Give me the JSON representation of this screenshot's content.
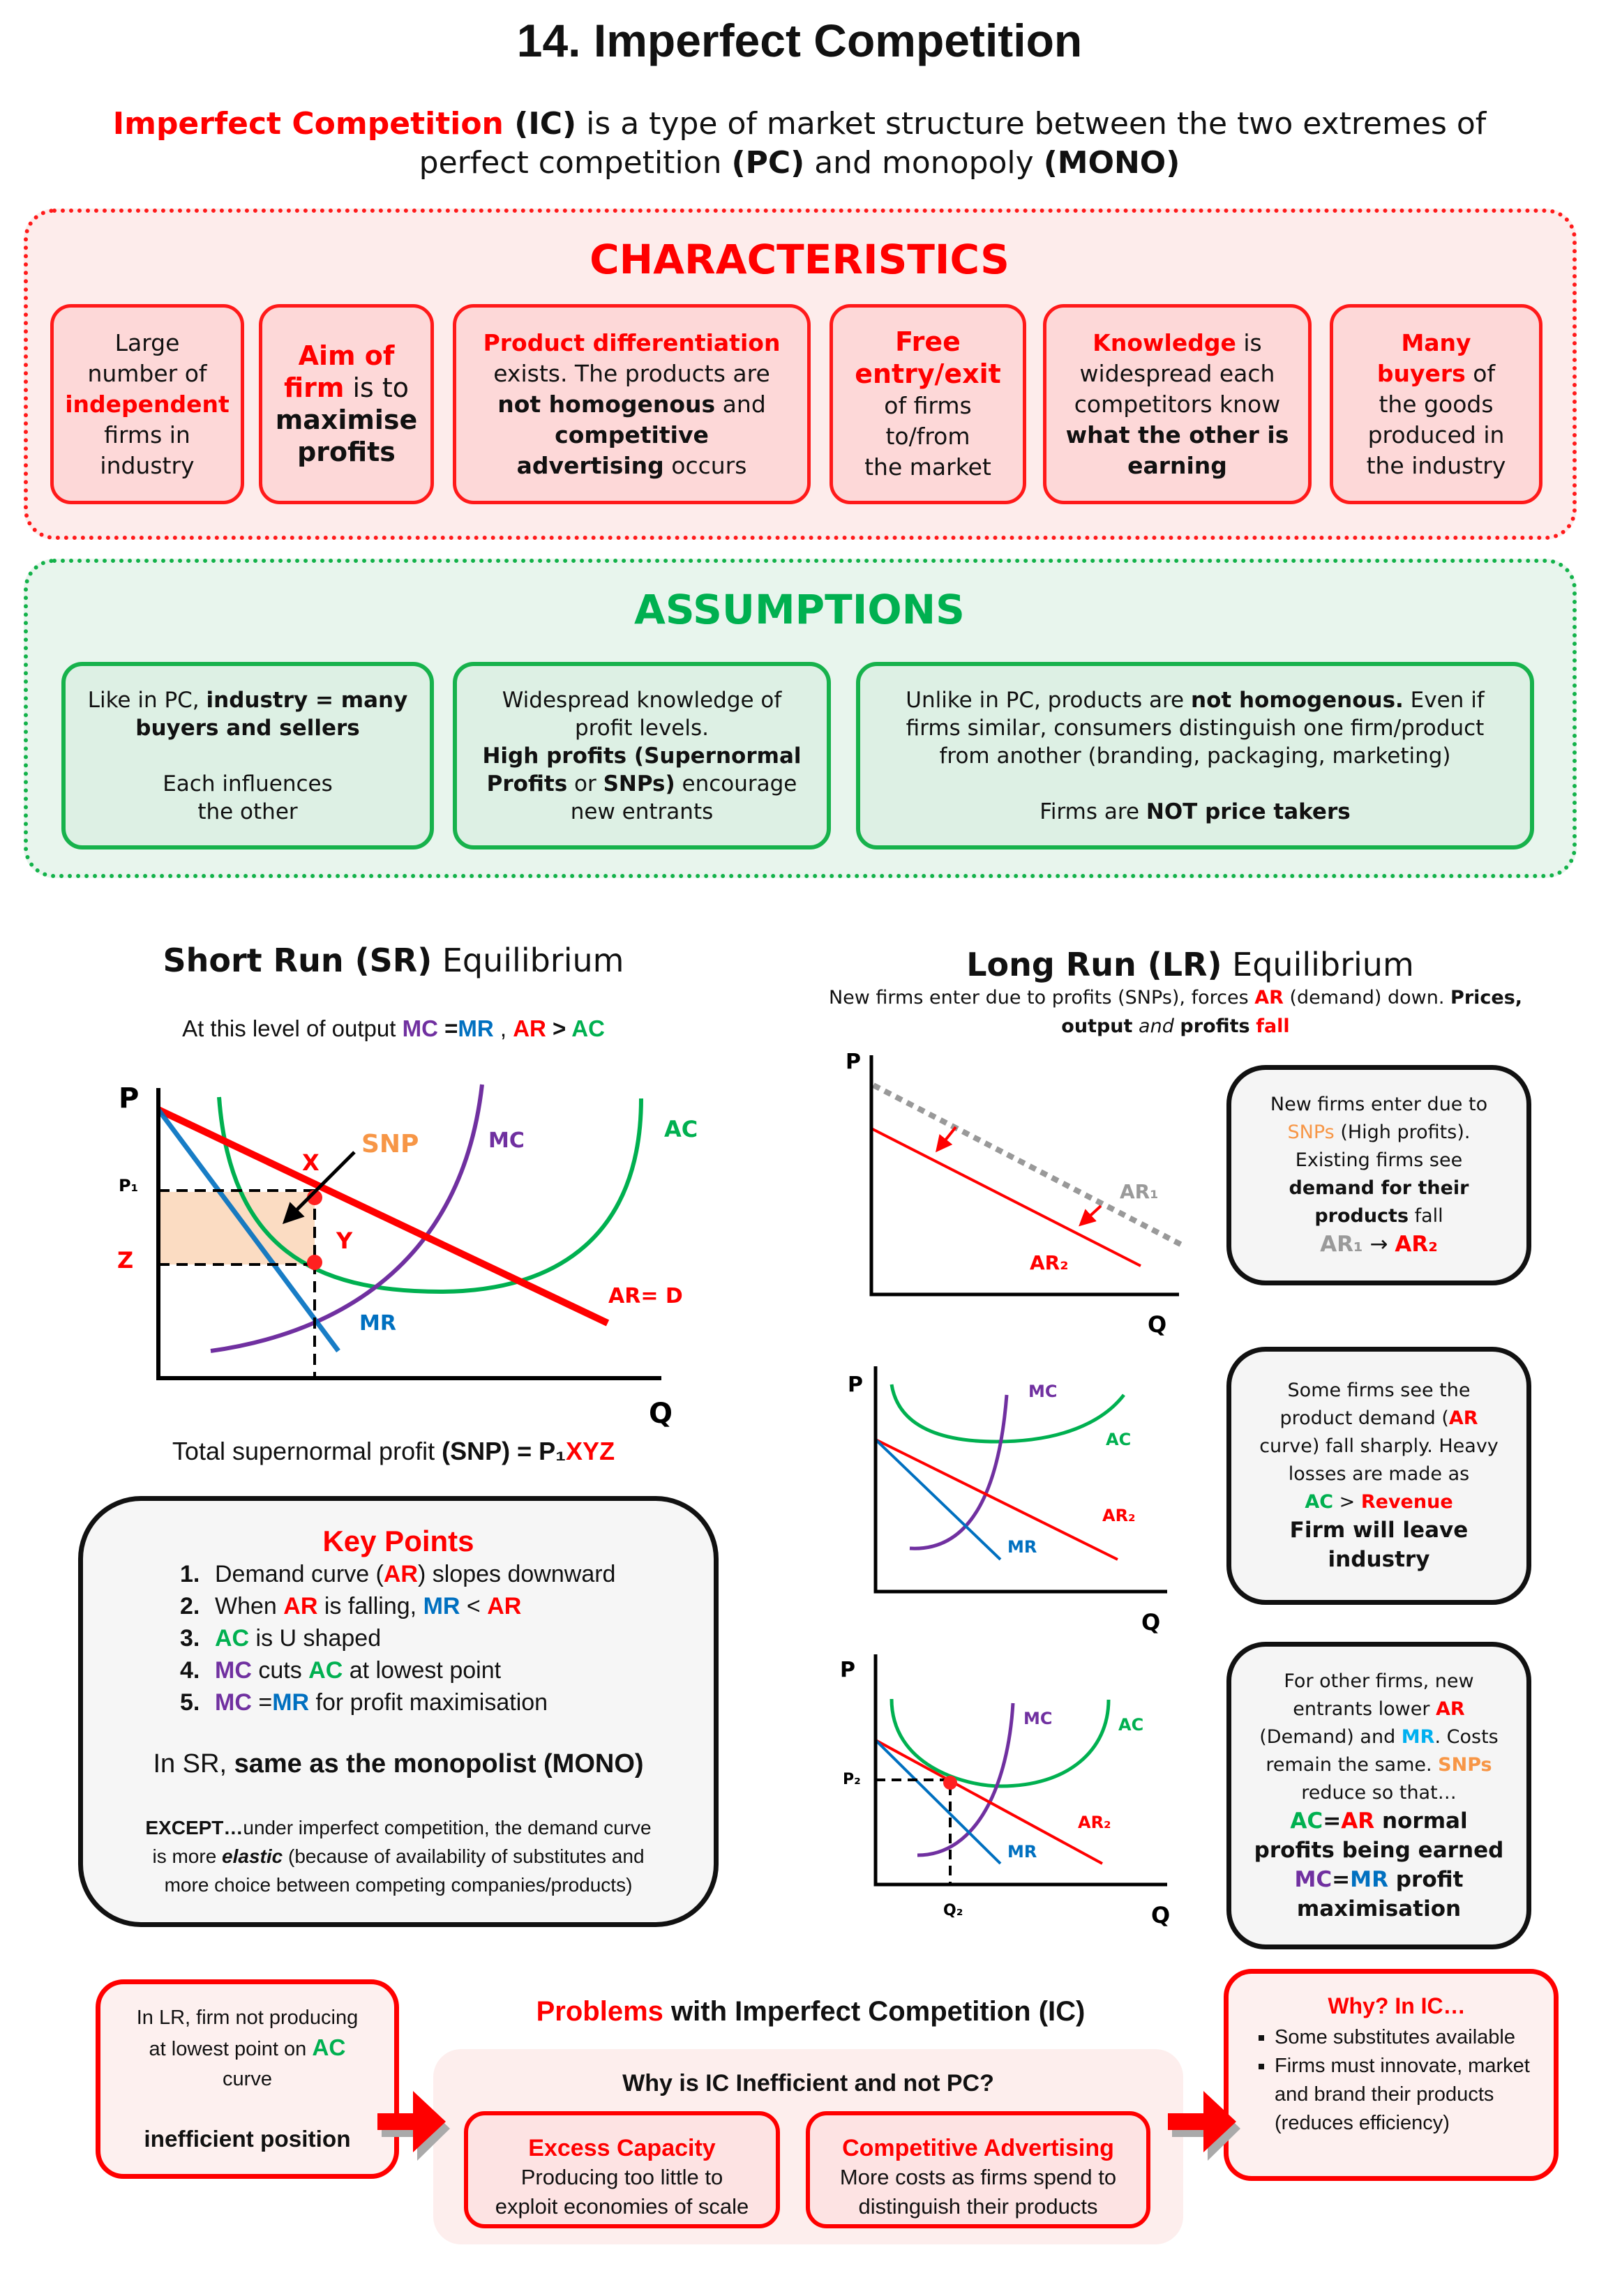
{
  "title": "14. Imperfect Competition",
  "intro": [
    {
      "t": "Imperfect Competition",
      "s": "r b"
    },
    {
      "t": " (IC)",
      "s": "b"
    },
    {
      "t": " is a type of market structure between the two extremes of",
      "s": ""
    },
    {
      "br": true
    },
    {
      "t": "perfect competition ",
      "s": ""
    },
    {
      "t": "(PC)",
      "s": "b"
    },
    {
      "t": " and monopoly ",
      "s": ""
    },
    {
      "t": "(MONO)",
      "s": "b"
    }
  ],
  "characteristics": {
    "heading": "CHARACTERISTICS",
    "cards": [
      [
        {
          "t": "Large"
        },
        {
          "br": true
        },
        {
          "t": "number of"
        },
        {
          "br": true
        },
        {
          "t": "independent",
          "s": "r b"
        },
        {
          "br": true
        },
        {
          "t": "firms in"
        },
        {
          "br": true
        },
        {
          "t": "industry"
        }
      ],
      [
        {
          "t": "Aim of",
          "s": "r b big"
        },
        {
          "br": true
        },
        {
          "t": "firm",
          "s": "r b big"
        },
        {
          "t": " is to",
          "s": "big"
        },
        {
          "br": true
        },
        {
          "t": "maximise",
          "s": "b big"
        },
        {
          "br": true
        },
        {
          "t": "profits",
          "s": "b big"
        }
      ],
      [
        {
          "t": "Product differentiation",
          "s": "r b"
        },
        {
          "br": true
        },
        {
          "t": "exists. The products are"
        },
        {
          "br": true
        },
        {
          "t": "not homogenous",
          "s": "b"
        },
        {
          "t": " and"
        },
        {
          "br": true
        },
        {
          "t": "competitive",
          "s": "b"
        },
        {
          "br": true
        },
        {
          "t": "advertising",
          "s": "b"
        },
        {
          "t": " occurs"
        }
      ],
      [
        {
          "t": "Free",
          "s": "r b big"
        },
        {
          "br": true
        },
        {
          "t": "entry/exit",
          "s": "r b big"
        },
        {
          "br": true
        },
        {
          "t": "of firms"
        },
        {
          "br": true
        },
        {
          "t": "to/from"
        },
        {
          "br": true
        },
        {
          "t": "the market"
        }
      ],
      [
        {
          "t": "Knowledge",
          "s": "r b"
        },
        {
          "t": " is"
        },
        {
          "br": true
        },
        {
          "t": "widespread each"
        },
        {
          "br": true
        },
        {
          "t": "competitors know"
        },
        {
          "br": true
        },
        {
          "t": "what the other is",
          "s": "b"
        },
        {
          "br": true
        },
        {
          "t": "earning",
          "s": "b"
        }
      ],
      [
        {
          "t": "Many",
          "s": "r b"
        },
        {
          "br": true
        },
        {
          "t": "buyers",
          "s": "r b"
        },
        {
          "t": " of"
        },
        {
          "br": true
        },
        {
          "t": "the goods"
        },
        {
          "br": true
        },
        {
          "t": "produced in"
        },
        {
          "br": true
        },
        {
          "t": "the industry"
        }
      ]
    ]
  },
  "assumptions": {
    "heading": "ASSUMPTIONS",
    "cards": [
      [
        {
          "t": "Like in PC, "
        },
        {
          "t": "industry = many",
          "s": "b"
        },
        {
          "br": true
        },
        {
          "t": "buyers and sellers",
          "s": "b"
        },
        {
          "br": true
        },
        {
          "br": true
        },
        {
          "t": "Each influences"
        },
        {
          "br": true
        },
        {
          "t": "the other"
        }
      ],
      [
        {
          "t": "Widespread knowledge of"
        },
        {
          "br": true
        },
        {
          "t": "profit levels."
        },
        {
          "br": true
        },
        {
          "t": "High profits (Supernormal",
          "s": "b"
        },
        {
          "br": true
        },
        {
          "t": "Profits",
          "s": "b"
        },
        {
          "t": " or "
        },
        {
          "t": "SNPs)",
          "s": "b"
        },
        {
          "t": " encourage"
        },
        {
          "br": true
        },
        {
          "t": "new entrants"
        }
      ],
      [
        {
          "t": "Unlike in PC, products are "
        },
        {
          "t": "not homogenous.",
          "s": "b"
        },
        {
          "t": " Even if"
        },
        {
          "br": true
        },
        {
          "t": "firms similar, consumers distinguish one firm/product"
        },
        {
          "br": true
        },
        {
          "t": "from another (branding, packaging, marketing)"
        },
        {
          "br": true
        },
        {
          "br": true
        },
        {
          "t": "Firms are "
        },
        {
          "t": "NOT price takers",
          "s": "b"
        }
      ]
    ]
  },
  "short_run": {
    "title": [
      {
        "t": "Short Run (SR)",
        "s": "b"
      },
      {
        "t": " Equilibrium"
      }
    ],
    "subtitle": [
      {
        "t": "At this level of output "
      },
      {
        "t": "MC",
        "s": "p b"
      },
      {
        "t": " =",
        "s": "b"
      },
      {
        "t": "MR",
        "s": "bl b"
      },
      {
        "t": " , "
      },
      {
        "t": "AR",
        "s": "r b"
      },
      {
        "t": " > ",
        "s": "b"
      },
      {
        "t": "AC",
        "s": "g b"
      }
    ],
    "graph": {
      "p": "P",
      "q": "Q",
      "p1": "P₁",
      "z": "Z",
      "x": "X",
      "y": "Y",
      "snp": "SNP",
      "mc": "MC",
      "ac": "AC",
      "ar": "AR= D",
      "mr": "MR"
    },
    "total": [
      {
        "t": "Total supernormal profit "
      },
      {
        "t": "(SNP)",
        "s": "b"
      },
      {
        "t": " = P₁",
        "s": "b"
      },
      {
        "t": "XYZ",
        "s": "r b"
      }
    ]
  },
  "key_points": {
    "title": "Key Points",
    "items": [
      [
        {
          "t": "1."
        },
        {
          "t": "Demand curve ("
        },
        {
          "t": "AR",
          "s": "r b"
        },
        {
          "t": ") slopes downward"
        }
      ],
      [
        {
          "t": "2."
        },
        {
          "t": "When "
        },
        {
          "t": "AR",
          "s": "r b"
        },
        {
          "t": " is falling, "
        },
        {
          "t": "MR",
          "s": "bl b"
        },
        {
          "t": " < "
        },
        {
          "t": "AR",
          "s": "r b"
        }
      ],
      [
        {
          "t": "3."
        },
        {
          "t": "AC",
          "s": "g b"
        },
        {
          "t": " is U shaped"
        }
      ],
      [
        {
          "t": "4."
        },
        {
          "t": "MC",
          "s": "p b"
        },
        {
          "t": " cuts "
        },
        {
          "t": "AC",
          "s": "g b"
        },
        {
          "t": " at lowest point"
        }
      ],
      [
        {
          "t": "5."
        },
        {
          "t": "MC",
          "s": "p b"
        },
        {
          "t": " ="
        },
        {
          "t": "MR",
          "s": "bl b"
        },
        {
          "t": " for profit maximisation"
        }
      ]
    ],
    "same_as": [
      {
        "t": "In SR, "
      },
      {
        "t": "same as the monopolist (MONO)",
        "s": "b"
      }
    ],
    "except": [
      {
        "t": "EXCEPT…",
        "s": "b"
      },
      {
        "t": "under imperfect competition, the demand curve"
      },
      {
        "br": true
      },
      {
        "t": "is more "
      },
      {
        "t": "elastic",
        "s": "b i"
      },
      {
        "t": " (because of availability of substitutes and"
      },
      {
        "br": true
      },
      {
        "t": "more choice between competing companies/products)"
      }
    ]
  },
  "long_run": {
    "title": [
      {
        "t": "Long Run (LR)",
        "s": "b"
      },
      {
        "t": " Equilibrium"
      }
    ],
    "subtitle": [
      {
        "t": "New firms enter due to profits (SNPs), forces "
      },
      {
        "t": "AR",
        "s": "r b"
      },
      {
        "t": " (demand) down. "
      },
      {
        "t": "Prices,",
        "s": "b"
      },
      {
        "br": true
      },
      {
        "t": "output",
        "s": "b"
      },
      {
        "t": " "
      },
      {
        "t": "and",
        "s": "i"
      },
      {
        "t": " "
      },
      {
        "t": "profits",
        "s": "b"
      },
      {
        "t": " "
      },
      {
        "t": "fall",
        "s": "r b"
      }
    ],
    "graph1": {
      "p": "P",
      "q": "Q",
      "ar1": "AR₁",
      "ar2": "AR₂"
    },
    "graph2": {
      "p": "P",
      "q": "Q",
      "mc": "MC",
      "ac": "AC",
      "ar2": "AR₂",
      "mr": "MR"
    },
    "graph3": {
      "p": "P",
      "q": "Q",
      "mc": "MC",
      "ac": "AC",
      "ar2": "AR₂",
      "mr": "MR",
      "p2": "P₂",
      "q2": "Q₂"
    },
    "box1": [
      {
        "t": "New firms enter due to"
      },
      {
        "br": true
      },
      {
        "t": "SNPs",
        "s": "o"
      },
      {
        "t": " (High profits)."
      },
      {
        "br": true
      },
      {
        "t": "Existing firms see"
      },
      {
        "br": true
      },
      {
        "t": "demand for their",
        "s": "b"
      },
      {
        "br": true
      },
      {
        "t": "products",
        "s": "b"
      },
      {
        "t": " fall"
      },
      {
        "br": true
      },
      {
        "t": "AR₁",
        "s": "gr b big"
      },
      {
        "t": " → ",
        "s": "big"
      },
      {
        "t": "AR₂",
        "s": "r b big"
      }
    ],
    "box2": [
      {
        "t": "Some firms see the"
      },
      {
        "br": true
      },
      {
        "t": "product demand ("
      },
      {
        "t": "AR",
        "s": "r b"
      },
      {
        "br": true
      },
      {
        "t": "curve) fall sharply. Heavy"
      },
      {
        "br": true
      },
      {
        "t": "losses are made as"
      },
      {
        "br": true
      },
      {
        "t": "AC",
        "s": "g b"
      },
      {
        "t": " > "
      },
      {
        "t": "Revenue",
        "s": "r b"
      },
      {
        "br": true
      },
      {
        "t": "Firm will leave",
        "s": "b big"
      },
      {
        "br": true
      },
      {
        "t": "industry",
        "s": "b big"
      }
    ],
    "box3": [
      {
        "t": "For other firms, new"
      },
      {
        "br": true
      },
      {
        "t": "entrants lower "
      },
      {
        "t": "AR",
        "s": "r b"
      },
      {
        "br": true
      },
      {
        "t": "(Demand) and "
      },
      {
        "t": "MR",
        "s": "lb b"
      },
      {
        "t": ". Costs"
      },
      {
        "br": true
      },
      {
        "t": "remain the same. "
      },
      {
        "t": "SNPs",
        "s": "o b"
      },
      {
        "br": true
      },
      {
        "t": "reduce so that…"
      },
      {
        "br": true
      },
      {
        "t": "AC",
        "s": "g b big"
      },
      {
        "t": "=",
        "s": "b big"
      },
      {
        "t": "AR",
        "s": "r b big"
      },
      {
        "t": " normal",
        "s": "b big"
      },
      {
        "br": true
      },
      {
        "t": "profits being earned",
        "s": "b big"
      },
      {
        "br": true
      },
      {
        "t": "MC",
        "s": "p b big"
      },
      {
        "t": "=",
        "s": "b big"
      },
      {
        "t": "MR",
        "s": "bl b big"
      },
      {
        "t": " profit",
        "s": "b big"
      },
      {
        "br": true
      },
      {
        "t": "maximisation",
        "s": "b big"
      }
    ]
  },
  "problems": {
    "left_box": [
      {
        "t": "In LR, firm not producing"
      },
      {
        "br": true
      },
      {
        "t": "at lowest point on "
      },
      {
        "t": "AC",
        "s": "g b big"
      },
      {
        "br": true
      },
      {
        "t": "curve"
      },
      {
        "br": true
      },
      {
        "br": true
      },
      {
        "t": "inefficient position",
        "s": "b big"
      }
    ],
    "title": [
      {
        "t": "Problems",
        "s": "r b"
      },
      {
        "t": " with Imperfect Competition (IC)",
        "s": "b"
      }
    ],
    "question": "Why is IC Inefficient and not PC?",
    "cards": [
      {
        "title": "Excess Capacity",
        "body": [
          {
            "t": "Producing too little to"
          },
          {
            "br": true
          },
          {
            "t": "exploit economies of scale"
          }
        ]
      },
      {
        "title": "Competitive Advertising",
        "body": [
          {
            "t": "More costs as firms spend to"
          },
          {
            "br": true
          },
          {
            "t": "distinguish their products"
          }
        ]
      }
    ],
    "why": {
      "title": "Why? In IC…",
      "bullets": [
        "Some substitutes available",
        "Firms must innovate, market and brand their products (reduces efficiency)"
      ]
    }
  },
  "colors": {
    "red": "#ff0000",
    "green": "#00b050",
    "purple": "#7030a0",
    "blue": "#0070c0",
    "orange": "#f79646",
    "gray": "#9a9a9a"
  }
}
